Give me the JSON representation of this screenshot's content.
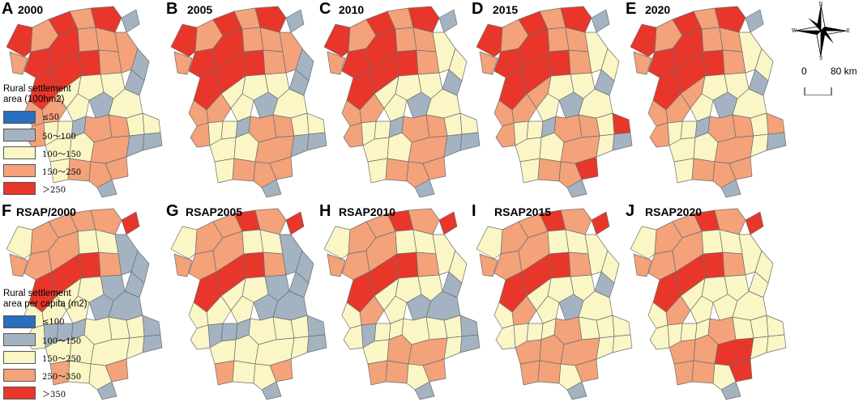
{
  "top_legend": {
    "title": "Rural settlement\narea (100hm2)",
    "items": [
      {
        "label": "≤50",
        "color": "#2a6ebd"
      },
      {
        "label": "50～100",
        "color": "#a3b3c2"
      },
      {
        "label": "100～150",
        "color": "#fbf6c5"
      },
      {
        "label": "150～250",
        "color": "#f3a27a"
      },
      {
        "label": "＞250",
        "color": "#e8362a"
      }
    ]
  },
  "bottom_legend": {
    "title": "Rural settlement\narea per capita (m2)",
    "items": [
      {
        "label": "≤100",
        "color": "#2a6ebd"
      },
      {
        "label": "100～150",
        "color": "#a3b3c2"
      },
      {
        "label": "150～250",
        "color": "#fbf6c5"
      },
      {
        "label": "250～350",
        "color": "#f3a27a"
      },
      {
        "label": "＞350",
        "color": "#e8362a"
      }
    ]
  },
  "compass": {
    "n": "N",
    "s": "S",
    "e": "E",
    "w": "W"
  },
  "scale": {
    "start": "0",
    "end": "80 km"
  },
  "panels": [
    {
      "letter": "A",
      "title": "2000",
      "legend": "top",
      "classes": [
        4,
        3,
        1,
        3,
        4,
        3,
        4,
        4,
        4,
        3,
        3,
        4,
        4,
        4,
        3,
        3,
        1,
        1,
        2,
        2,
        2,
        3,
        3,
        2,
        1,
        2,
        2,
        2,
        3,
        3,
        1,
        2,
        2,
        3,
        2,
        2,
        3,
        1,
        2,
        3,
        3,
        3,
        1,
        1
      ]
    },
    {
      "letter": "B",
      "title": "2005",
      "legend": "top",
      "classes": [
        4,
        3,
        1,
        3,
        4,
        3,
        4,
        4,
        4,
        3,
        3,
        4,
        4,
        4,
        3,
        3,
        1,
        1,
        2,
        2,
        2,
        3,
        3,
        2,
        1,
        2,
        2,
        2,
        3,
        3,
        1,
        2,
        2,
        3,
        2,
        2,
        3,
        1,
        2,
        3,
        3,
        3,
        1,
        1
      ]
    },
    {
      "letter": "C",
      "title": "2010",
      "legend": "top",
      "classes": [
        4,
        3,
        1,
        3,
        4,
        3,
        4,
        4,
        4,
        3,
        3,
        4,
        4,
        4,
        3,
        2,
        2,
        1,
        2,
        2,
        2,
        3,
        3,
        2,
        1,
        2,
        2,
        2,
        3,
        3,
        1,
        2,
        2,
        3,
        2,
        2,
        3,
        1,
        2,
        3,
        3,
        3,
        1,
        1
      ]
    },
    {
      "letter": "D",
      "title": "2015",
      "legend": "top",
      "classes": [
        4,
        3,
        1,
        3,
        4,
        3,
        4,
        4,
        4,
        3,
        3,
        4,
        4,
        4,
        3,
        2,
        2,
        1,
        2,
        2,
        3,
        3,
        3,
        2,
        1,
        2,
        4,
        2,
        3,
        3,
        1,
        2,
        2,
        3,
        2,
        2,
        3,
        2,
        2,
        3,
        3,
        4,
        1,
        1
      ]
    },
    {
      "letter": "E",
      "title": "2020",
      "legend": "top",
      "classes": [
        4,
        3,
        1,
        3,
        4,
        3,
        4,
        4,
        4,
        3,
        3,
        4,
        4,
        4,
        3,
        2,
        2,
        1,
        2,
        2,
        3,
        3,
        3,
        2,
        1,
        2,
        3,
        2,
        3,
        3,
        1,
        2,
        2,
        3,
        2,
        2,
        3,
        2,
        2,
        3,
        3,
        3,
        1,
        1
      ]
    },
    {
      "letter": "F",
      "title": "RSAP/2000",
      "legend": "bottom",
      "classes": [
        2,
        3,
        4,
        3,
        3,
        3,
        3,
        3,
        3,
        2,
        2,
        4,
        4,
        4,
        3,
        1,
        1,
        1,
        1,
        2,
        2,
        2,
        2,
        2,
        1,
        1,
        1,
        2,
        2,
        2,
        1,
        1,
        1,
        2,
        2,
        2,
        2,
        2,
        3,
        2,
        2,
        3,
        1,
        1
      ]
    },
    {
      "letter": "G",
      "title": "RSAP2005",
      "legend": "bottom",
      "classes": [
        2,
        3,
        4,
        3,
        3,
        4,
        3,
        3,
        3,
        2,
        2,
        4,
        4,
        4,
        3,
        1,
        1,
        1,
        1,
        2,
        2,
        2,
        2,
        2,
        1,
        1,
        1,
        2,
        2,
        2,
        1,
        1,
        1,
        2,
        2,
        2,
        2,
        2,
        3,
        2,
        2,
        3,
        1,
        1
      ]
    },
    {
      "letter": "H",
      "title": "RSAP2010",
      "legend": "bottom",
      "classes": [
        2,
        3,
        4,
        3,
        3,
        4,
        3,
        3,
        3,
        2,
        2,
        4,
        4,
        4,
        3,
        2,
        2,
        1,
        2,
        2,
        2,
        3,
        2,
        2,
        1,
        1,
        1,
        2,
        2,
        2,
        2,
        2,
        1,
        2,
        2,
        3,
        3,
        2,
        3,
        3,
        2,
        3,
        1,
        1
      ]
    },
    {
      "letter": "I",
      "title": "RSAP2015",
      "legend": "bottom",
      "classes": [
        2,
        3,
        4,
        3,
        3,
        4,
        3,
        3,
        3,
        2,
        2,
        4,
        4,
        4,
        3,
        2,
        2,
        1,
        2,
        2,
        2,
        3,
        2,
        2,
        1,
        2,
        2,
        2,
        2,
        3,
        2,
        2,
        2,
        2,
        3,
        3,
        3,
        2,
        3,
        3,
        2,
        3,
        1,
        2
      ]
    },
    {
      "letter": "J",
      "title": "RSAP2020",
      "legend": "bottom",
      "classes": [
        2,
        3,
        4,
        3,
        3,
        4,
        3,
        3,
        3,
        2,
        2,
        4,
        4,
        4,
        3,
        2,
        2,
        2,
        2,
        2,
        2,
        3,
        2,
        2,
        2,
        2,
        2,
        2,
        2,
        3,
        2,
        2,
        2,
        2,
        3,
        3,
        4,
        2,
        3,
        3,
        2,
        4,
        1,
        2
      ]
    }
  ]
}
